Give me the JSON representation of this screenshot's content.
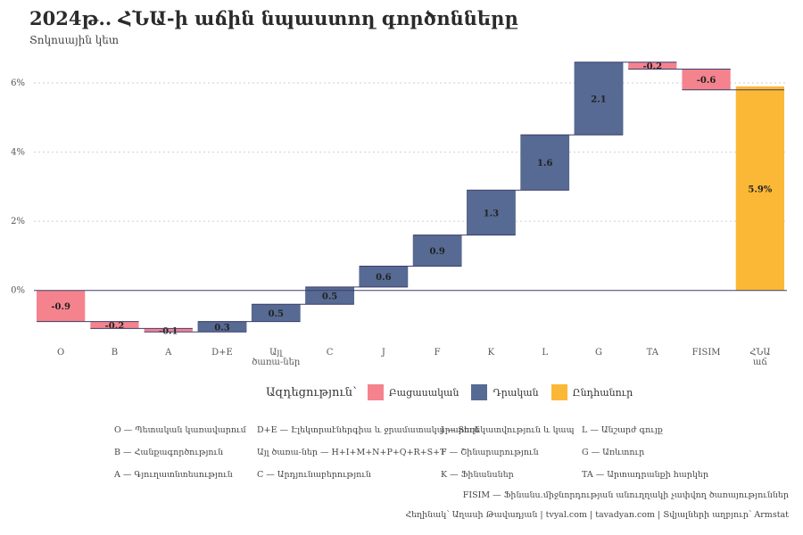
{
  "title": "2024թ.. ՀՆԱ-ի աճին նպաստող գործոնները",
  "subtitle": "Տոկոսային կետ",
  "chart_data": {
    "type": "waterfall",
    "categories": [
      "O",
      "B",
      "A",
      "D+E",
      "Այլ\nծառա-ներ",
      "C",
      "J",
      "F",
      "K",
      "L",
      "G",
      "TA",
      "FISIM",
      "ՀՆԱ\nաճ"
    ],
    "values": [
      -0.9,
      -0.2,
      -0.1,
      0.3,
      0.5,
      0.5,
      0.6,
      0.9,
      1.3,
      1.6,
      2.1,
      -0.2,
      -0.6,
      5.9
    ],
    "labels": [
      "-0.9",
      "-0.2",
      "-0.1",
      "0.3",
      "0.5",
      "0.5",
      "0.6",
      "0.9",
      "1.3",
      "1.6",
      "2.1",
      "-0.2",
      "-0.6",
      "5.9%"
    ],
    "kinds": [
      "neg",
      "neg",
      "neg",
      "pos",
      "pos",
      "pos",
      "pos",
      "pos",
      "pos",
      "pos",
      "pos",
      "neg",
      "neg",
      "total"
    ],
    "yticks": [
      "0%",
      "2%",
      "4%",
      "6%"
    ],
    "ytick_values": [
      0,
      2,
      4,
      6
    ],
    "ylim": [
      -1.4,
      6.8
    ],
    "grid": "horizontal dotted",
    "legend": {
      "title": "Ազդեցություն՝",
      "placement": "bottom",
      "items": [
        {
          "label": "Բացասական",
          "color": "#f4838e"
        },
        {
          "label": "Դրական",
          "color": "#566a93"
        },
        {
          "label": "Ընդհանուր",
          "color": "#fbb837"
        }
      ]
    }
  },
  "colors": {
    "neg": "#f4838e",
    "pos": "#566a93",
    "total": "#fbb837",
    "connector": "#3d3d6b"
  },
  "notes": [
    "O — Պետական կառավարում",
    "B — Հանքագործություն",
    "A — Գյուղատնտեսություն",
    "D+E — Էլեկտրաէներգիա և ջրամատակարարում",
    "Այլ ծառա-ներ — H+I+M+N+P+Q+R+S+T",
    "C — Արդյունաբերություն",
    "J — Տեղեկատվություն և կապ",
    "F — Շինարարություն",
    "K — Ֆինանսներ",
    "L — Անշարժ գույք",
    "G — Առևտուր",
    "TA — Արտադրանքի հարկեր"
  ],
  "fisim_note": "FISIM — Ֆինանս.միջնորդության անուղղակի չափվող ծառայություններ",
  "caption": "Հեղինակ՝ Աղասի Թավադյան   |   tvyal.com   |   tavadyan.com   |   Տվյալների աղբյուր՝ Armstat"
}
